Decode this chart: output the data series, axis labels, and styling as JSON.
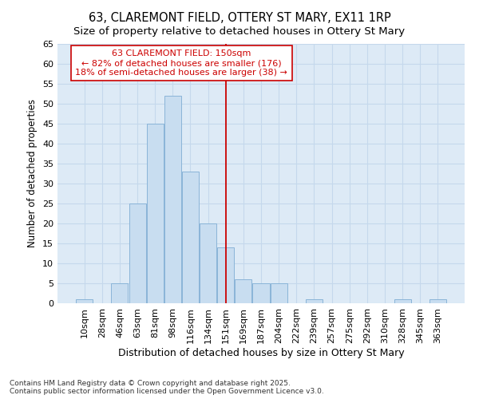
{
  "title": "63, CLAREMONT FIELD, OTTERY ST MARY, EX11 1RP",
  "subtitle": "Size of property relative to detached houses in Ottery St Mary",
  "xlabel": "Distribution of detached houses by size in Ottery St Mary",
  "ylabel": "Number of detached properties",
  "categories": [
    "10sqm",
    "28sqm",
    "46sqm",
    "63sqm",
    "81sqm",
    "98sqm",
    "116sqm",
    "134sqm",
    "151sqm",
    "169sqm",
    "187sqm",
    "204sqm",
    "222sqm",
    "239sqm",
    "257sqm",
    "275sqm",
    "292sqm",
    "310sqm",
    "328sqm",
    "345sqm",
    "363sqm"
  ],
  "values": [
    1,
    0,
    5,
    25,
    45,
    52,
    33,
    20,
    14,
    6,
    5,
    5,
    0,
    1,
    0,
    0,
    0,
    0,
    1,
    0,
    1
  ],
  "bar_color": "#c8ddf0",
  "bar_edgecolor": "#8ab4d8",
  "vline_x_index": 8,
  "vline_color": "#cc0000",
  "annotation_line1": "63 CLAREMONT FIELD: 150sqm",
  "annotation_line2": "← 82% of detached houses are smaller (176)",
  "annotation_line3": "18% of semi-detached houses are larger (38) →",
  "annotation_color": "#cc0000",
  "ylim": [
    0,
    65
  ],
  "yticks": [
    0,
    5,
    10,
    15,
    20,
    25,
    30,
    35,
    40,
    45,
    50,
    55,
    60,
    65
  ],
  "grid_color": "#c5d8ec",
  "background_color": "#ddeaf6",
  "footer_text": "Contains HM Land Registry data © Crown copyright and database right 2025.\nContains public sector information licensed under the Open Government Licence v3.0.",
  "title_fontsize": 10.5,
  "subtitle_fontsize": 9.5,
  "xlabel_fontsize": 9,
  "ylabel_fontsize": 8.5,
  "tick_fontsize": 8,
  "annotation_fontsize": 8,
  "footer_fontsize": 6.5
}
